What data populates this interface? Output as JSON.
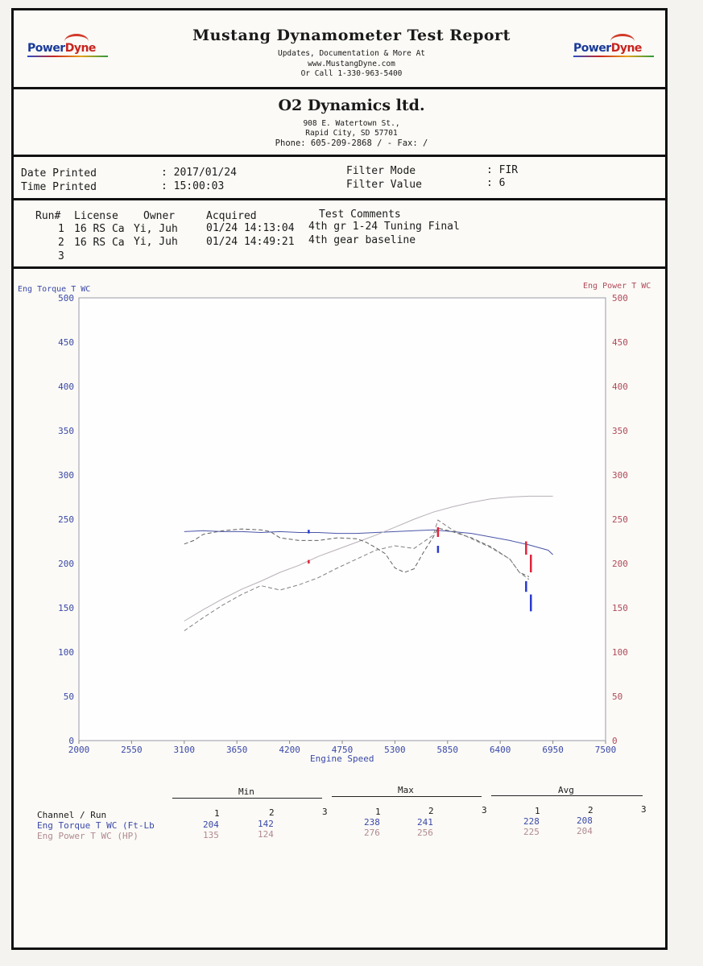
{
  "header": {
    "title": "Mustang Dynamometer Test Report",
    "line1": "Updates, Documentation & More At",
    "line2": "www.MustangDyne.com",
    "line3": "Or Call 1-330-963-5400",
    "logo_left_a": "Power",
    "logo_left_b": "Dyne",
    "logo_right_a": "Power",
    "logo_right_b": "Dyne"
  },
  "company": {
    "name": "O2 Dynamics ltd.",
    "address1": "908 E. Watertown St.,",
    "address2": "Rapid City, SD  57701",
    "phone": "Phone: 605-209-2868 /  - Fax:  /"
  },
  "info": {
    "date_label": "Date Printed",
    "date_value": ": 2017/01/24",
    "time_label": "Time Printed",
    "time_value": ": 15:00:03",
    "filter_mode_label": "Filter Mode",
    "filter_mode_value": ": FIR",
    "filter_value_label": "Filter Value",
    "filter_value_value": ": 6"
  },
  "runs": {
    "headers": [
      "Run#",
      "License",
      "Owner",
      "Acquired",
      "Test Comments"
    ],
    "rows": [
      {
        "run": "1",
        "license": "16 RS Ca",
        "owner": "Yi, Juh",
        "acquired": "01/24 14:13:04",
        "comment": "4th gr 1-24 Tuning Final"
      },
      {
        "run": "2",
        "license": "16 RS Ca",
        "owner": "Yi, Juh",
        "acquired": "01/24 14:49:21",
        "comment": "4th gear baseline"
      },
      {
        "run": "3",
        "license": "",
        "owner": "",
        "acquired": "",
        "comment": ""
      }
    ]
  },
  "chart_data": {
    "type": "line",
    "left_axis_label": "Eng Torque T WC",
    "right_axis_label": "Eng Power T WC",
    "xlabel": "Engine Speed",
    "xlim": [
      2000,
      7500
    ],
    "xticks": [
      2000,
      2550,
      3100,
      3650,
      4200,
      4750,
      5300,
      5850,
      6400,
      6950,
      7500
    ],
    "ylim": [
      0,
      500
    ],
    "yticks": [
      0,
      50,
      100,
      150,
      200,
      250,
      300,
      350,
      400,
      450,
      500
    ],
    "left_color": "#3a48a8",
    "right_color": "#b04a5a",
    "series": [
      {
        "run": 1,
        "channel": "torque",
        "style": "solid",
        "color": "#4a55a8",
        "x": [
          3100,
          3300,
          3500,
          3700,
          3900,
          4100,
          4300,
          4500,
          4700,
          4900,
          5100,
          5300,
          5500,
          5700,
          5900,
          6100,
          6300,
          6500,
          6700,
          6900,
          6950
        ],
        "y": [
          236,
          237,
          236,
          236,
          235,
          236,
          235,
          235,
          234,
          234,
          235,
          236,
          237,
          238,
          236,
          234,
          230,
          226,
          221,
          215,
          210
        ]
      },
      {
        "run": 1,
        "channel": "power",
        "style": "solid",
        "color": "#b8b0b8",
        "x": [
          3100,
          3300,
          3500,
          3700,
          3900,
          4100,
          4300,
          4500,
          4700,
          4900,
          5100,
          5300,
          5500,
          5700,
          5900,
          6100,
          6300,
          6500,
          6700,
          6900,
          6950
        ],
        "y": [
          135,
          148,
          160,
          171,
          180,
          190,
          198,
          208,
          216,
          224,
          232,
          241,
          250,
          258,
          264,
          269,
          273,
          275,
          276,
          276,
          276
        ]
      },
      {
        "run": 2,
        "channel": "torque",
        "style": "dashed",
        "color": "#606060",
        "x": [
          3100,
          3200,
          3300,
          3500,
          3700,
          3900,
          4000,
          4100,
          4300,
          4500,
          4700,
          4900,
          5000,
          5100,
          5200,
          5300,
          5400,
          5500,
          5600,
          5700,
          5750,
          5900,
          6100,
          6300,
          6500,
          6600,
          6700
        ],
        "y": [
          222,
          226,
          233,
          237,
          239,
          238,
          236,
          229,
          226,
          226,
          229,
          228,
          224,
          218,
          211,
          195,
          190,
          194,
          213,
          230,
          240,
          236,
          229,
          219,
          205,
          190,
          185
        ]
      },
      {
        "run": 2,
        "channel": "power",
        "style": "dashed",
        "color": "#808080",
        "x": [
          3100,
          3300,
          3500,
          3700,
          3900,
          4100,
          4300,
          4500,
          4700,
          4900,
          5100,
          5300,
          5500,
          5700,
          5750,
          5900,
          6100,
          6300,
          6500,
          6600,
          6700
        ],
        "y": [
          124,
          139,
          153,
          165,
          175,
          170,
          176,
          184,
          195,
          205,
          215,
          220,
          217,
          232,
          249,
          238,
          228,
          218,
          205,
          190,
          182
        ]
      }
    ],
    "markers": [
      {
        "color": "#2a3ad0",
        "x": 4400,
        "y1": 234,
        "y2": 238
      },
      {
        "color": "#e0253a",
        "x": 4400,
        "y1": 200,
        "y2": 204
      },
      {
        "color": "#e0253a",
        "x": 5750,
        "y1": 230,
        "y2": 241
      },
      {
        "color": "#2a3ad0",
        "x": 5750,
        "y1": 212,
        "y2": 220
      },
      {
        "color": "#e0253a",
        "x": 6670,
        "y1": 210,
        "y2": 225
      },
      {
        "color": "#e0253a",
        "x": 6720,
        "y1": 190,
        "y2": 210
      },
      {
        "color": "#2a3ad0",
        "x": 6670,
        "y1": 168,
        "y2": 180
      },
      {
        "color": "#2a3ad0",
        "x": 6720,
        "y1": 146,
        "y2": 165
      }
    ]
  },
  "stats": {
    "groups": [
      "Min",
      "Max",
      "Avg"
    ],
    "col_headers": [
      "1",
      "2",
      "3"
    ],
    "row_header": "Channel / Run",
    "rows": [
      {
        "label": "Eng Torque T WC (Ft-Lb",
        "min": [
          "204",
          "142",
          ""
        ],
        "max": [
          "238",
          "241",
          ""
        ],
        "avg": [
          "228",
          "208",
          ""
        ],
        "color": "#3a48a8"
      },
      {
        "label": "Eng Power T WC (HP)",
        "min": [
          "135",
          "124",
          ""
        ],
        "max": [
          "276",
          "256",
          ""
        ],
        "avg": [
          "225",
          "204",
          ""
        ],
        "color": "#b08a90"
      }
    ]
  }
}
